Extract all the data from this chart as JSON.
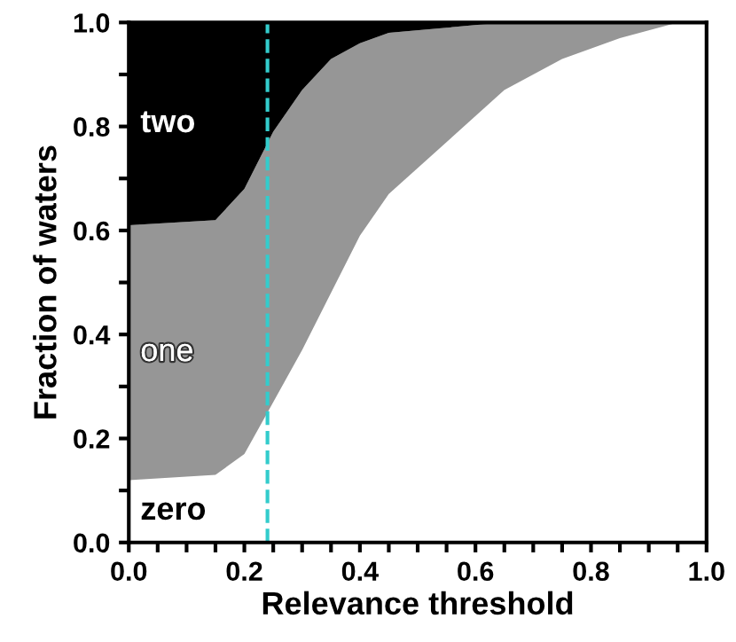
{
  "chart_data": {
    "type": "area",
    "stacked": true,
    "xlabel": "Relevance threshold",
    "ylabel": "Fraction of waters",
    "x": [
      0,
      0.15,
      0.2,
      0.25,
      0.3,
      0.35,
      0.4,
      0.45,
      0.55,
      0.65,
      0.75,
      0.85,
      0.95,
      1.0
    ],
    "series": [
      {
        "name": "zero",
        "color": "#ffffff",
        "values": [
          0.12,
          0.13,
          0.17,
          0.27,
          0.37,
          0.48,
          0.59,
          0.67,
          0.77,
          0.87,
          0.93,
          0.97,
          1.0,
          1.0
        ]
      },
      {
        "name": "one",
        "color": "#969696",
        "values": [
          0.49,
          0.49,
          0.51,
          0.52,
          0.5,
          0.45,
          0.37,
          0.31,
          0.22,
          0.13,
          0.07,
          0.03,
          0,
          0
        ]
      },
      {
        "name": "two",
        "color": "#000000",
        "values": [
          0.39,
          0.38,
          0.32,
          0.21,
          0.13,
          0.07,
          0.04,
          0.02,
          0.01,
          0,
          0,
          0,
          0,
          0
        ]
      }
    ],
    "xlim": [
      0,
      1
    ],
    "ylim": [
      0,
      1
    ],
    "xticks": [
      {
        "value": 0,
        "label": "0.0"
      },
      {
        "value": 0.05,
        "label": null
      },
      {
        "value": 0.1,
        "label": null
      },
      {
        "value": 0.15,
        "label": null
      },
      0.2,
      {
        "value": 0.25,
        "label": null
      },
      {
        "value": 0.3,
        "label": null
      },
      {
        "value": 0.35,
        "label": null
      },
      0.4,
      {
        "value": 0.45,
        "label": null
      },
      {
        "value": 0.5,
        "label": null
      },
      {
        "value": 0.55,
        "label": null
      },
      0.6,
      {
        "value": 0.65,
        "label": null
      },
      {
        "value": 0.7,
        "label": null
      },
      {
        "value": 0.75,
        "label": null
      },
      0.8,
      {
        "value": 0.85,
        "label": null
      },
      {
        "value": 0.9,
        "label": null
      },
      {
        "value": 0.95,
        "label": null
      },
      {
        "value": 1,
        "label": "1.0"
      }
    ],
    "yticks": [
      {
        "value": 0,
        "label": "0.0"
      },
      {
        "value": 0.1,
        "label": null
      },
      0.2,
      {
        "value": 0.3,
        "label": null
      },
      0.4,
      {
        "value": 0.5,
        "label": null
      },
      0.6,
      {
        "value": 0.7,
        "label": null
      },
      0.8,
      {
        "value": 0.9,
        "label": null
      },
      {
        "value": 1,
        "label": "1.0"
      }
    ],
    "ref_lines": [
      {
        "axis": "x",
        "value": 0.24,
        "color": "#33cccc",
        "line_style": "dashed"
      }
    ],
    "grid": false,
    "legend": false
  }
}
